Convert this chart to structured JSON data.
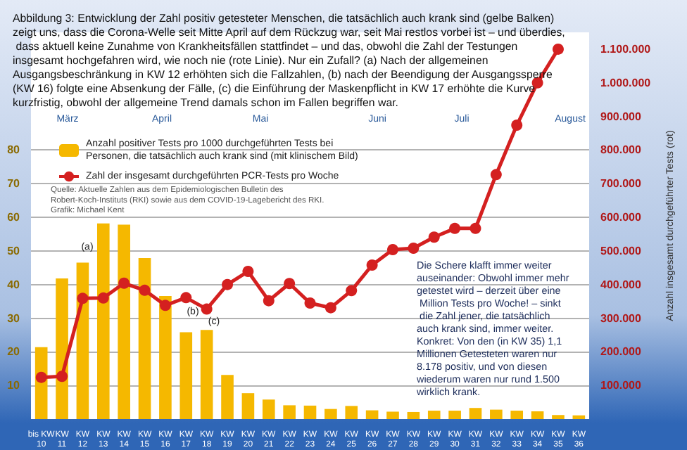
{
  "chart_data": {
    "type": "bar",
    "title": "Abbildung 3: Entwicklung der Zahl positiv getesteter Menschen, die tatsächlich auch krank sind (gelbe Balken) zeigt uns, dass die Corona-Welle seit Mitte April auf dem Rückzug war, seit Mai restlos vorbei ist – und überdies, dass aktuell keine Zunahme von Krankheitsfällen stattfindet – und das, obwohl die Zahl der Testungen insgesamt hochgefahren wird, wie noch nie (rote Linie). Nur ein Zufall? (a) Nach der allgemeinen Ausgangsbeschränkung in KW 12 erhöhten sich die Fallzahlen, (b) nach der Beendigung der Ausgangssperre (KW 16) folgte eine Absenkung der Fälle, (c) die Einführung der Maskenpflicht in KW 17 erhöhte die Kurve kurzfristig, obwohl der allgemeine Trend damals schon im Fallen begriffen war.",
    "y2label": "Anzahl insgesamt durchgeführter Tests (rot)",
    "categories": [
      "bis KW 10",
      "KW 11",
      "KW 12",
      "KW 13",
      "KW 14",
      "KW 15",
      "KW 16",
      "KW 17",
      "KW 18",
      "KW 19",
      "KW 20",
      "KW 21",
      "KW 22",
      "KW 23",
      "KW 24",
      "KW 25",
      "KW 26",
      "KW 27",
      "KW 28",
      "KW 29",
      "KW 30",
      "KW 31",
      "KW 32",
      "KW 33",
      "KW 34",
      "KW 35",
      "KW 36"
    ],
    "series": [
      {
        "name": "Anzahl positiver Tests pro 1000 durchgeführten Tests bei Personen, die tatsächlich auch krank sind (mit klinischem Bild)",
        "color": "#f5b800",
        "values": [
          21.4,
          41.8,
          46.5,
          58.2,
          57.8,
          47.9,
          36.6,
          25.8,
          26.5,
          13.1,
          7.7,
          5.8,
          4.1,
          4.0,
          3.0,
          3.9,
          2.6,
          2.2,
          2.1,
          2.5,
          2.5,
          3.3,
          2.8,
          2.5,
          2.3,
          1.2,
          1.1
        ]
      },
      {
        "name": "Zahl der insgesamt durchgeführten PCR-Tests pro Woche",
        "type": "line",
        "axis": "y2",
        "color": "#d42020",
        "values": [
          124000,
          127000,
          359000,
          360000,
          404000,
          383000,
          338000,
          361000,
          327000,
          400000,
          439000,
          352000,
          403000,
          345000,
          331000,
          382000,
          458000,
          504000,
          508000,
          541000,
          567000,
          567000,
          727000,
          874000,
          1000000,
          1100000,
          null
        ]
      }
    ],
    "ylim": [
      0,
      115
    ],
    "yticks": [
      10,
      20,
      30,
      40,
      50,
      60,
      70,
      80
    ],
    "y2lim": [
      0,
      1150000
    ],
    "y2ticks": [
      {
        "value": 100000,
        "label": "100.000"
      },
      {
        "value": 200000,
        "label": "200.000"
      },
      {
        "value": 300000,
        "label": "300.000"
      },
      {
        "value": 400000,
        "label": "400.000"
      },
      {
        "value": 500000,
        "label": "500.000"
      },
      {
        "value": 600000,
        "label": "600.000"
      },
      {
        "value": 700000,
        "label": "700.000"
      },
      {
        "value": 800000,
        "label": "800.000"
      },
      {
        "value": 900000,
        "label": "900.000"
      },
      {
        "value": 1000000,
        "label": "1.000.000"
      },
      {
        "value": 1100000,
        "label": "1.100.000"
      }
    ],
    "grid": "y",
    "legend": "top left",
    "marker": "circle",
    "line_style": "solid",
    "annotations": [
      "Quelle: Aktuelle Zahlen aus dem Epidemiologischen Bulletin des Robert-Koch-Instituts (RKI) sowie aus dem COVID-19-Lagebericht des RKI. Grafik: Michael Kent",
      "Die Schere klafft immer weiter auseinander: Obwohl immer mehr getestet wird – derzeit über eine Million Tests pro Woche! – sinkt die Zahl jener, die tatsächlich auch krank sind, immer weiter. Konkret: Von den (in KW 35) 1,1 Millionen Getesteten waren nur 8.178 positiv, und von diesen wiederum waren nur rund 1.500 wirklich krank.",
      "März",
      "April",
      "Mai",
      "Juni",
      "Juli",
      "August",
      "(a)",
      "(b)",
      "(c)"
    ]
  }
}
